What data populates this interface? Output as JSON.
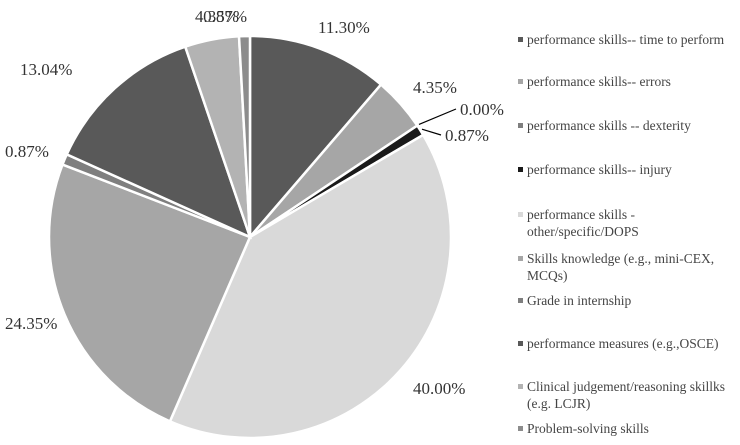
{
  "chart_data": {
    "type": "pie",
    "title": "",
    "legend_position": "right",
    "series": [
      {
        "name": "performance skills-- time to perform",
        "value": 11.3,
        "label": "11.30%",
        "color": "#595959"
      },
      {
        "name": "performance skills-- errors",
        "value": 4.35,
        "label": "4.35%",
        "color": "#a6a6a6"
      },
      {
        "name": "performance skills -- dexterity",
        "value": 0.0,
        "label": "0.00%",
        "color": "#7f7f7f"
      },
      {
        "name": "performance skills-- injury",
        "value": 0.87,
        "label": "0.87%",
        "color": "#1a1a1a"
      },
      {
        "name": "performance skills - other/specific/DOPS",
        "value": 40.0,
        "label": "40.00%",
        "color": "#d9d9d9"
      },
      {
        "name": "Skills knowledge (e.g., mini-CEX, MCQs)",
        "value": 24.35,
        "label": "24.35%",
        "color": "#a6a6a6"
      },
      {
        "name": "Grade in internship",
        "value": 0.87,
        "label": "0.87%",
        "color": "#7f7f7f"
      },
      {
        "name": "performance measures (e.g.,OSCE)",
        "value": 13.04,
        "label": "13.04%",
        "color": "#595959"
      },
      {
        "name": "Clinical judgement/reasoning skillks (e.g. LCJR)",
        "value": 4.35,
        "label": "4.35%",
        "color": "#b3b3b3"
      },
      {
        "name": "Problem-solving skills",
        "value": 0.87,
        "label": "0.87%",
        "color": "#8c8c8c"
      }
    ]
  }
}
